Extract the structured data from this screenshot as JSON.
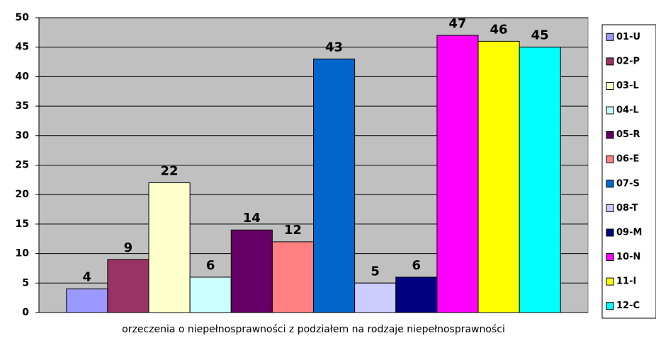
{
  "chart_data": {
    "type": "bar",
    "categories": [
      "orzeczenia o niepełnosprawności z podziałem na rodzaje niepełnosprawności"
    ],
    "series": [
      {
        "name": "01-U",
        "color": "#9999ff",
        "values": [
          4
        ]
      },
      {
        "name": "02-P",
        "color": "#993366",
        "values": [
          9
        ]
      },
      {
        "name": "03-L",
        "color": "#ffffcc",
        "values": [
          22
        ]
      },
      {
        "name": "04-L",
        "color": "#ccffff",
        "values": [
          6
        ]
      },
      {
        "name": "05-R",
        "color": "#660066",
        "values": [
          14
        ]
      },
      {
        "name": "06-E",
        "color": "#ff8080",
        "values": [
          12
        ]
      },
      {
        "name": "07-S",
        "color": "#0066cc",
        "values": [
          43
        ]
      },
      {
        "name": "08-T",
        "color": "#ccccff",
        "values": [
          5
        ]
      },
      {
        "name": "09-M",
        "color": "#000080",
        "values": [
          6
        ]
      },
      {
        "name": "10-N",
        "color": "#ff00ff",
        "values": [
          47
        ]
      },
      {
        "name": "11-I",
        "color": "#ffff00",
        "values": [
          46
        ]
      },
      {
        "name": "12-C",
        "color": "#00ffff",
        "values": [
          45
        ]
      }
    ],
    "ylim": [
      0,
      50
    ],
    "yticks": [
      0,
      5,
      10,
      15,
      20,
      25,
      30,
      35,
      40,
      45,
      50
    ],
    "grid": true,
    "legend": "right",
    "plot_background": "#c0c0c0"
  }
}
